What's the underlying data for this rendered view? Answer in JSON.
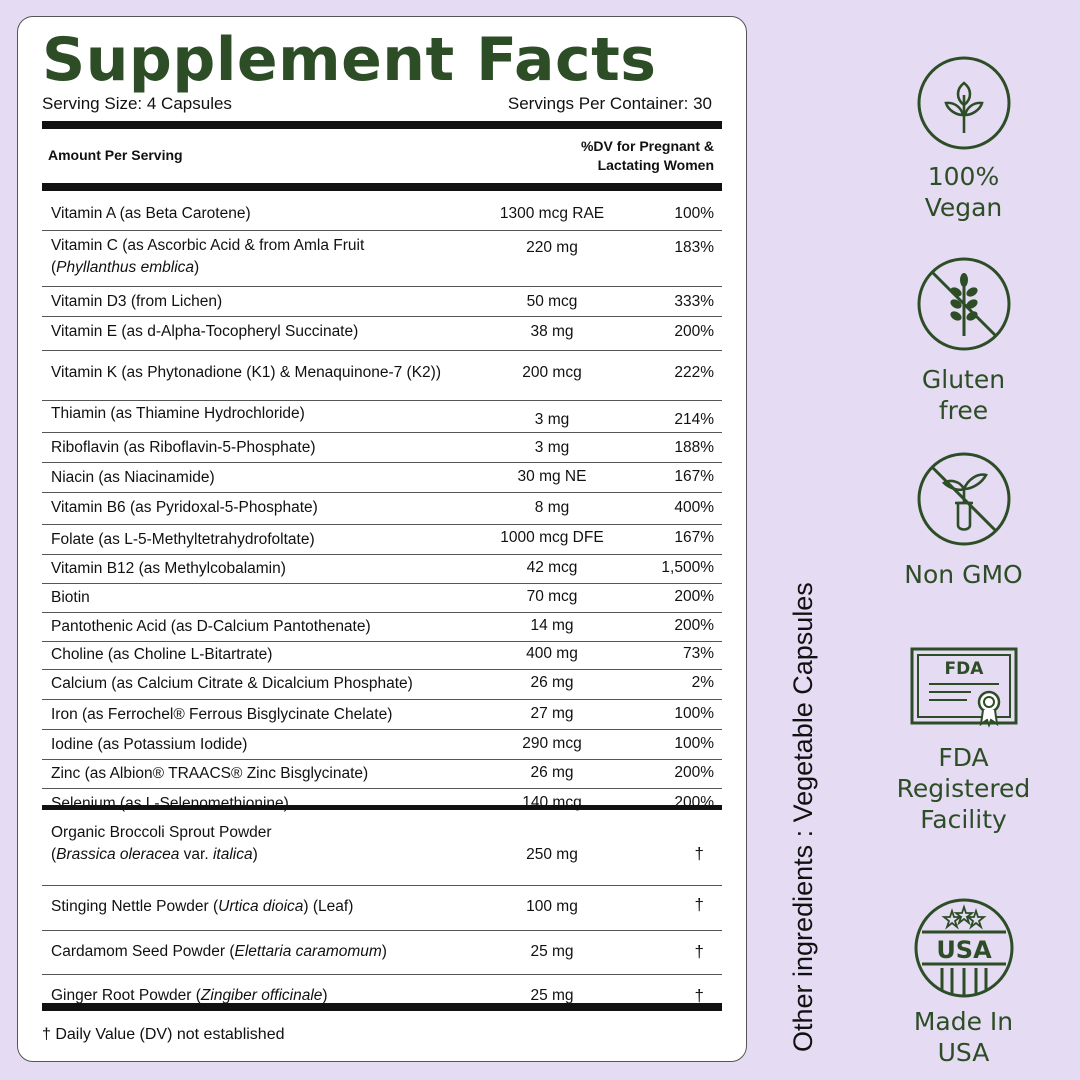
{
  "header": {
    "title": "Supplement Facts",
    "serving_size": "Serving Size: 4 Capsules",
    "servings_per_container": "Servings Per Container: 30",
    "amount_per_serving": "Amount Per Serving",
    "dv_heading_line1": "%DV for Pregnant &",
    "dv_heading_line2": "Lactating Women"
  },
  "nutrients": [
    {
      "name": "Vitamin A (as Beta Carotene)",
      "amount": "1300 mcg RAE",
      "dv": "100%"
    },
    {
      "name": "Vitamin C (as Ascorbic Acid & from Amla Fruit",
      "name_line2_italic": "Phyllanthus emblica",
      "name_line2_suffix": ")",
      "name_line2_prefix": "(",
      "amount": "220 mg",
      "dv": "183%"
    },
    {
      "name": "Vitamin D3  (from Lichen)",
      "amount": "50 mcg",
      "dv": "333%"
    },
    {
      "name": "Vitamin E (as d-Alpha-Tocopheryl Succinate)",
      "amount": "38 mg",
      "dv": "200%"
    },
    {
      "name": "Vitamin K (as Phytonadione (K1) & Menaquinone-7 (K2))",
      "amount": "200 mcg",
      "dv": "222%"
    },
    {
      "name": "Thiamin (as Thiamine Hydrochloride)",
      "amount": "3 mg",
      "dv": "214%"
    },
    {
      "name": "Riboflavin (as Riboflavin-5-Phosphate)",
      "amount": "3 mg",
      "dv": "188%"
    },
    {
      "name": "Niacin  (as Niacinamide)",
      "amount": "30 mg NE",
      "dv": "167%"
    },
    {
      "name": "Vitamin B6  (as Pyridoxal-5-Phosphate)",
      "amount": "8 mg",
      "dv": "400%"
    },
    {
      "name": "Folate  (as L-5-Methyltetrahydrofoltate)",
      "amount": "1000 mcg DFE",
      "dv": "167%"
    },
    {
      "name": "Vitamin B12 (as Methylcobalamin)",
      "amount": "42 mcg",
      "dv": "1,500%"
    },
    {
      "name": "Biotin",
      "amount": "70 mcg",
      "dv": "200%"
    },
    {
      "name": "Pantothenic Acid (as D-Calcium Pantothenate)",
      "amount": "14 mg",
      "dv": "200%"
    },
    {
      "name": "Choline (as Choline L-Bitartrate)",
      "amount": "400 mg",
      "dv": "73%"
    },
    {
      "name": "Calcium  (as Calcium Citrate & Dicalcium Phosphate)",
      "amount": "26 mg",
      "dv": "2%"
    },
    {
      "name": "Iron (as Ferrochel® Ferrous Bisglycinate Chelate)",
      "amount": "27 mg",
      "dv": "100%"
    },
    {
      "name": "Iodine (as Potassium Iodide)",
      "amount": "290 mcg",
      "dv": "100%"
    },
    {
      "name": "Zinc (as Albion® TRAACS® Zinc Bisglycinate)",
      "amount": "26 mg",
      "dv": "200%"
    },
    {
      "name": "Selenium  (as L-Selenomethionine)",
      "amount": "140 mcg",
      "dv": "200%"
    }
  ],
  "botanicals": [
    {
      "name": "Organic Broccoli Sprout Powder",
      "line2_prefix": "(",
      "line2_italic": "Brassica oleracea",
      "line2_mid": " var. ",
      "line2_italic2": "italica",
      "line2_suffix": ")",
      "amount": "250 mg",
      "dv": "†"
    },
    {
      "name_prefix": "Stinging Nettle Powder  (",
      "name_italic": "Urtica dioica",
      "name_suffix": ") (Leaf)",
      "amount": "100 mg",
      "dv": "†"
    },
    {
      "name_prefix": "Cardamom Seed Powder (",
      "name_italic": "Elettaria caramomum",
      "name_suffix": ")",
      "amount": "25 mg",
      "dv": "†"
    },
    {
      "name_prefix": "Ginger Root Powder (",
      "name_italic": "Zingiber officinale",
      "name_suffix": ")",
      "amount": "25 mg",
      "dv": "†"
    }
  ],
  "footnote": "† Daily Value (DV) not established",
  "other_ingredients": "Other ingredients : Vegetable Capsules",
  "colors": {
    "brand_green": "#2d4d26",
    "background": "#e5dcf3"
  },
  "badges": [
    {
      "icon": "vegan-leaf-icon",
      "label": "100% Vegan"
    },
    {
      "icon": "gluten-free-icon",
      "label": "Gluten free"
    },
    {
      "icon": "non-gmo-icon",
      "label": "Non GMO"
    },
    {
      "icon": "fda-certificate-icon",
      "label_line1": "FDA",
      "label_line2": "Registered",
      "label_line3": "Facility"
    },
    {
      "icon": "usa-seal-icon",
      "seal_text": "USA",
      "label": "Made In USA"
    }
  ]
}
